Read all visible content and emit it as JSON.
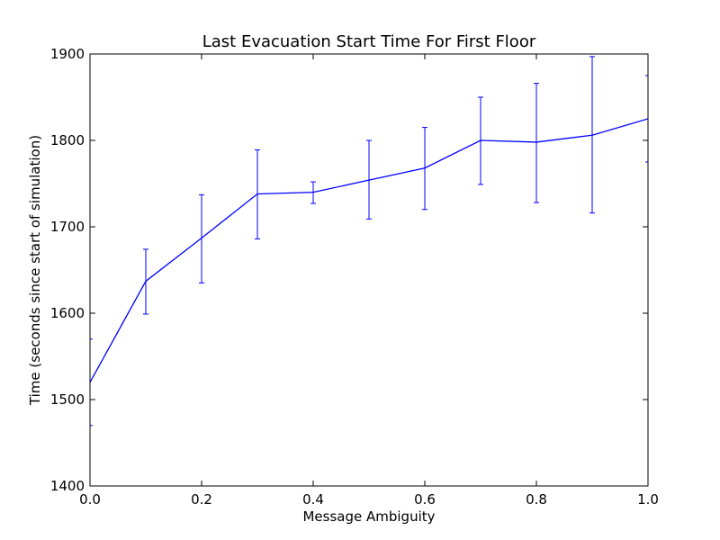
{
  "chart_data": {
    "type": "line",
    "title": "Last Evacuation Start Time For First Floor",
    "xlabel": "Message Ambiguity",
    "ylabel": "Time (seconds since start of simulation)",
    "xlim": [
      0.0,
      1.0
    ],
    "ylim": [
      1400,
      1900
    ],
    "xticks": [
      0.0,
      0.2,
      0.4,
      0.6,
      0.8,
      1.0
    ],
    "xtick_labels": [
      "0.0",
      "0.2",
      "0.4",
      "0.6",
      "0.8",
      "1.0"
    ],
    "yticks": [
      1400,
      1500,
      1600,
      1700,
      1800,
      1900
    ],
    "ytick_labels": [
      "1400",
      "1500",
      "1600",
      "1700",
      "1800",
      "1900"
    ],
    "grid": false,
    "series": [
      {
        "color": "#0000ff",
        "x": [
          0.0,
          0.1,
          0.2,
          0.3,
          0.4,
          0.5,
          0.6,
          0.7,
          0.8,
          0.9,
          1.0
        ],
        "y": [
          1520,
          1637,
          1687,
          1738,
          1740,
          1754,
          1768,
          1800,
          1798,
          1806,
          1825
        ],
        "err_low": [
          1470,
          1599,
          1635,
          1686,
          1727,
          1709,
          1720,
          1749,
          1728,
          1716,
          1775
        ],
        "err_high": [
          1570,
          1674,
          1737,
          1789,
          1752,
          1800,
          1815,
          1850,
          1866,
          1897,
          1875
        ]
      }
    ]
  }
}
